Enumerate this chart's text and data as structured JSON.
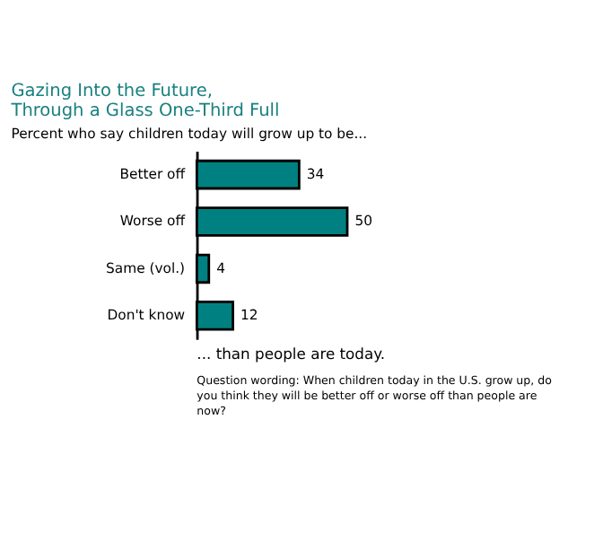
{
  "chart_data": {
    "type": "bar",
    "orientation": "horizontal",
    "title": "Gazing Into the Future,\nThrough a Glass One-Third Full",
    "subtitle": "Percent who say children today will grow up to be...",
    "categories": [
      "Better off",
      "Worse off",
      "Same (vol.)",
      "Don't know"
    ],
    "values": [
      34,
      50,
      4,
      12
    ],
    "color": "#008080",
    "data_labels": true,
    "annotations": [
      "... than people are today.",
      "Question wording: When children today in the U.S. grow up, do you think they will be better off or worse off than people are now?"
    ]
  }
}
